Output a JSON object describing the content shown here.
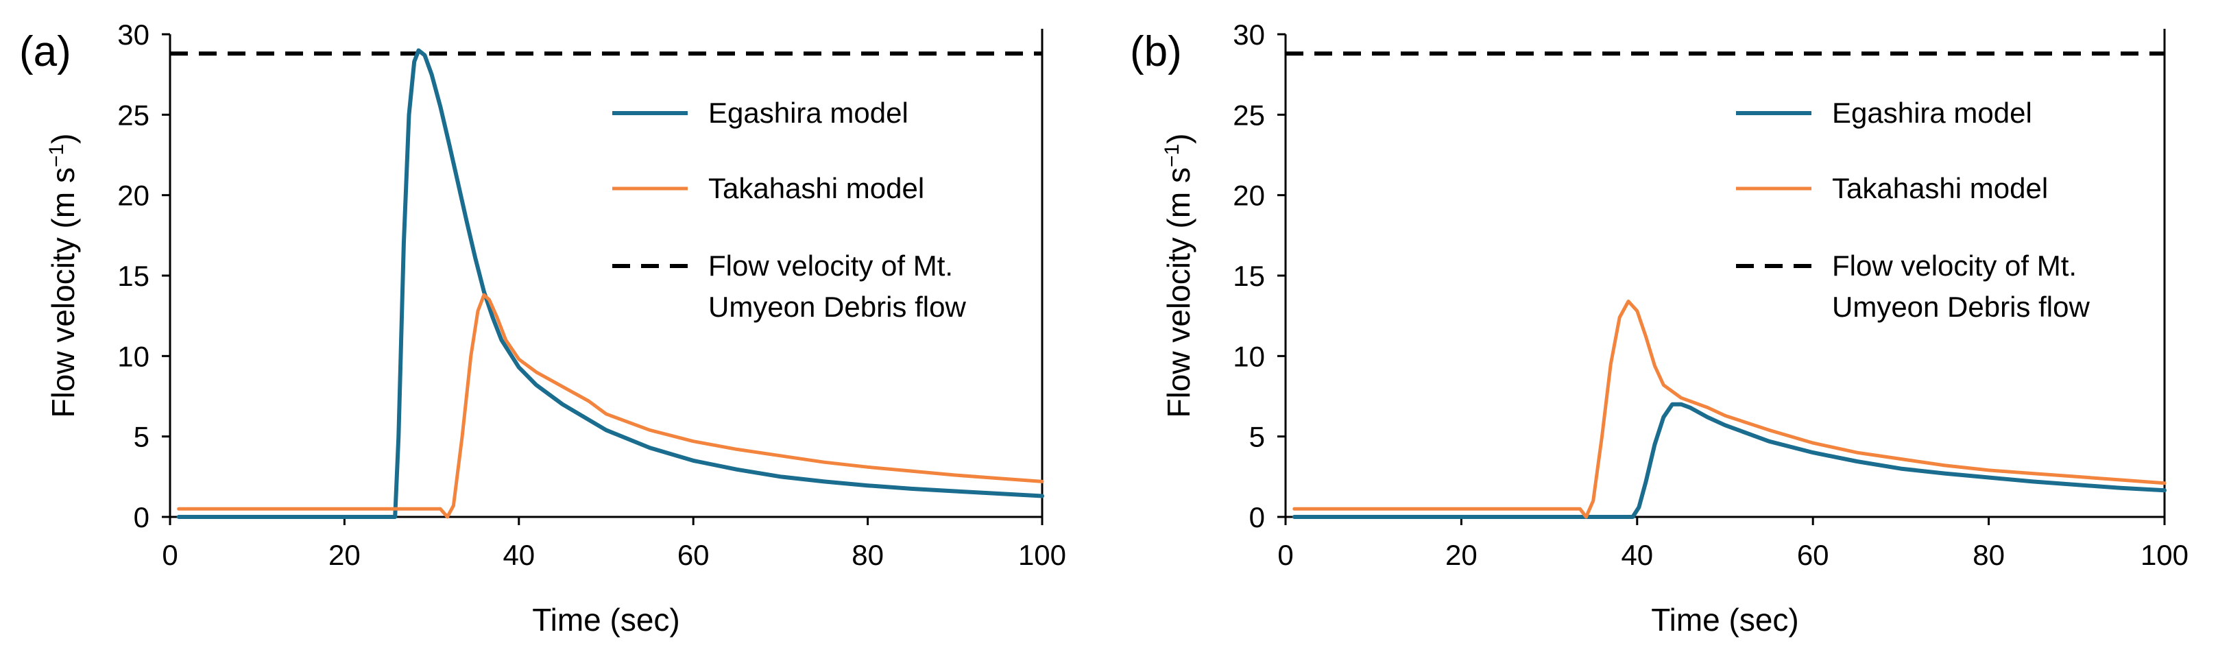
{
  "colors": {
    "egashira": "#1a6d8e",
    "takahashi": "#f2843e",
    "observed": "#000000",
    "axis": "#000000"
  },
  "chart_data": [
    {
      "type": "line",
      "panel_label": "(a)",
      "xlabel": "Time (sec)",
      "ylabel_main": "Flow velocity (m s",
      "ylabel_sup": "−1",
      "ylabel_end": ")",
      "xlim": [
        0,
        100
      ],
      "ylim": [
        0,
        30
      ],
      "xticks": [
        "0",
        "20",
        "40",
        "60",
        "80",
        "100"
      ],
      "yticks": [
        "0",
        "5",
        "10",
        "15",
        "20",
        "25",
        "30"
      ],
      "reference_line": {
        "name": "Flow velocity of Mt. Umyeon Debris flow",
        "y": 28.8
      },
      "legend": {
        "egashira": "Egashira model",
        "takahashi": "Takahashi model",
        "observed_line1": "Flow velocity of Mt.",
        "observed_line2": "Umyeon Debris flow"
      },
      "series": [
        {
          "name": "Egashira model",
          "color_key": "egashira",
          "x": [
            1,
            25.8,
            26.2,
            26.8,
            27.4,
            28,
            28.5,
            29.2,
            30,
            31,
            32,
            33,
            34,
            35,
            36,
            37,
            38,
            40,
            42,
            45,
            50,
            55,
            60,
            65,
            70,
            75,
            80,
            85,
            90,
            95,
            100
          ],
          "y": [
            0,
            0,
            5,
            17,
            25,
            28.3,
            29,
            28.7,
            27.5,
            25.5,
            23.2,
            20.8,
            18.4,
            16.1,
            14,
            12.4,
            11,
            9.3,
            8.2,
            7,
            5.4,
            4.3,
            3.5,
            2.95,
            2.5,
            2.2,
            1.95,
            1.75,
            1.6,
            1.45,
            1.3
          ]
        },
        {
          "name": "Takahashi model",
          "color_key": "takahashi",
          "x": [
            1,
            31,
            31.8,
            32.5,
            33.5,
            34.5,
            35.3,
            36,
            36.6,
            37.5,
            38.5,
            40,
            42,
            45,
            48,
            50,
            55,
            60,
            65,
            70,
            75,
            80,
            85,
            90,
            95,
            100
          ],
          "y": [
            0.5,
            0.5,
            0,
            0.7,
            5,
            10,
            12.8,
            13.8,
            13.5,
            12.4,
            11,
            9.8,
            9,
            8.1,
            7.2,
            6.4,
            5.4,
            4.7,
            4.2,
            3.8,
            3.4,
            3.1,
            2.85,
            2.6,
            2.4,
            2.2
          ]
        }
      ]
    },
    {
      "type": "line",
      "panel_label": "(b)",
      "xlabel": "Time (sec)",
      "ylabel_main": "Flow velocity (m s",
      "ylabel_sup": "−1",
      "ylabel_end": ")",
      "xlim": [
        0,
        100
      ],
      "ylim": [
        0,
        30
      ],
      "xticks": [
        "0",
        "20",
        "40",
        "60",
        "80",
        "100"
      ],
      "yticks": [
        "0",
        "5",
        "10",
        "15",
        "20",
        "25",
        "30"
      ],
      "reference_line": {
        "name": "Flow velocity of Mt. Umyeon Debris flow",
        "y": 28.8
      },
      "legend": {
        "egashira": "Egashira model",
        "takahashi": "Takahashi model",
        "observed_line1": "Flow velocity of Mt.",
        "observed_line2": "Umyeon Debris flow"
      },
      "series": [
        {
          "name": "Egashira model",
          "color_key": "egashira",
          "x": [
            1,
            39.5,
            40.2,
            41,
            42,
            43,
            44,
            45,
            46,
            48,
            50,
            55,
            60,
            65,
            70,
            75,
            80,
            85,
            90,
            95,
            100
          ],
          "y": [
            0,
            0,
            0.6,
            2.2,
            4.5,
            6.2,
            7,
            7,
            6.8,
            6.2,
            5.7,
            4.7,
            4,
            3.45,
            3,
            2.7,
            2.45,
            2.2,
            2,
            1.8,
            1.65
          ]
        },
        {
          "name": "Takahashi model",
          "color_key": "takahashi",
          "x": [
            1,
            33.5,
            34.2,
            35,
            36,
            37,
            38,
            39,
            40,
            41,
            42,
            43,
            45,
            48,
            50,
            55,
            60,
            65,
            70,
            75,
            80,
            85,
            90,
            95,
            100
          ],
          "y": [
            0.5,
            0.5,
            0,
            1,
            5,
            9.5,
            12.4,
            13.4,
            12.8,
            11.2,
            9.4,
            8.2,
            7.4,
            6.8,
            6.3,
            5.4,
            4.6,
            4,
            3.6,
            3.2,
            2.9,
            2.7,
            2.5,
            2.3,
            2.1
          ]
        }
      ]
    }
  ]
}
